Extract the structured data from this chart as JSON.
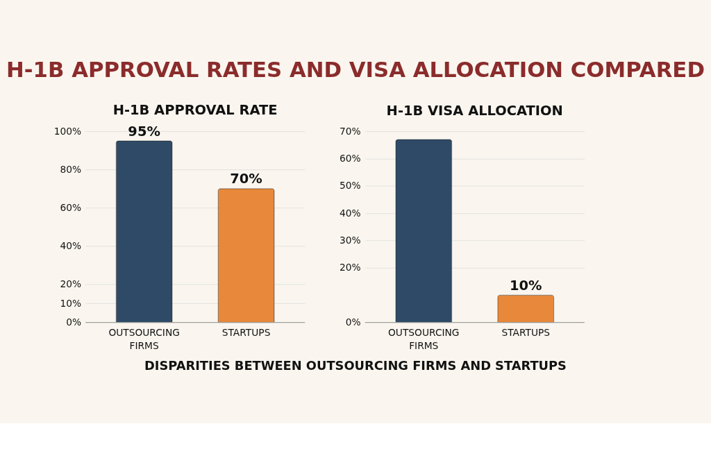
{
  "chart_data": [
    {
      "type": "other",
      "title": "H-1B APPROVAL RATES AND VISA ALLOCATION COMPARED",
      "annotations": [
        "DISPARITIES BETWEEN OUTSOURCING FIRMS AND STARTUPS"
      ]
    },
    {
      "type": "bar",
      "title": "H-1B APPROVAL RATE",
      "categories": [
        "OUTSOURCING FIRMS",
        "STARTUPS"
      ],
      "values": [
        95,
        70
      ],
      "colors": [
        "#2e4a66",
        "#e8883a"
      ],
      "value_labels": [
        "95%",
        "70%"
      ],
      "ylim": [
        0,
        100
      ],
      "yticks": [
        {
          "value": 0,
          "label": "0%"
        },
        {
          "value": 10,
          "label": "10%"
        },
        {
          "value": 20,
          "label": "20%"
        },
        {
          "value": 40,
          "label": "40%"
        },
        {
          "value": 60,
          "label": "60%"
        },
        {
          "value": 80,
          "label": "80%"
        },
        {
          "value": 100,
          "label": "100%"
        }
      ],
      "grid": "y"
    },
    {
      "type": "bar",
      "title": "H-1B VISA ALLOCATION",
      "categories": [
        "OUTSOURCING FIRMS",
        "STARTUPS"
      ],
      "values": [
        67,
        10
      ],
      "colors": [
        "#2e4a66",
        "#e8883a"
      ],
      "value_labels": [
        null,
        "10%"
      ],
      "ylim": [
        0,
        70
      ],
      "yticks": [
        {
          "value": 0,
          "label": "0%"
        },
        {
          "value": 20,
          "label": "20%"
        },
        {
          "value": 30,
          "label": "30%"
        },
        {
          "value": 40,
          "label": "40%"
        },
        {
          "value": 50,
          "label": "50%"
        },
        {
          "value": 60,
          "label": "60%"
        },
        {
          "value": 70,
          "label": "70%"
        }
      ],
      "grid": "y"
    }
  ]
}
